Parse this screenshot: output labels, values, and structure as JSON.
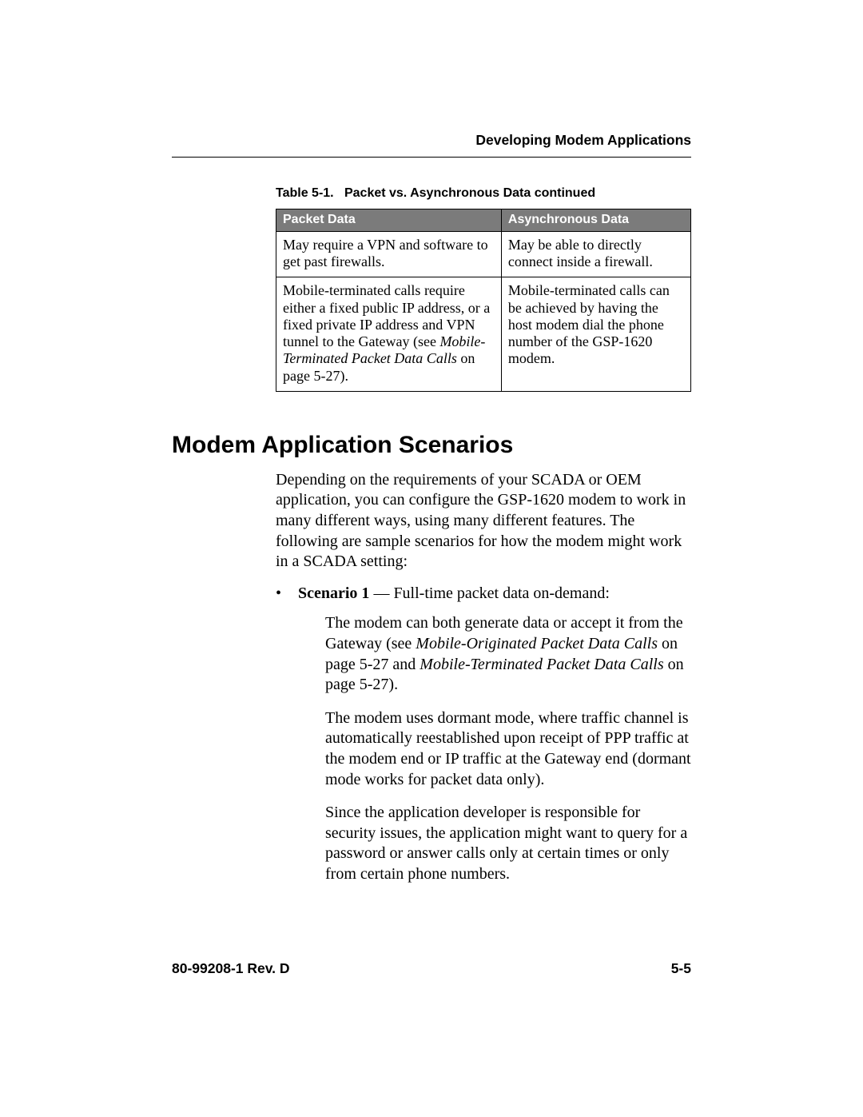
{
  "header": {
    "running_head": "Developing Modem Applications"
  },
  "table": {
    "caption_prefix": "Table 5-1.",
    "caption_title": "Packet vs. Asynchronous Data  continued",
    "columns": [
      "Packet Data",
      "Asynchronous Data"
    ],
    "header_bg": "#7b7b7b",
    "header_fg": "#ffffff",
    "rows": [
      {
        "left": "May require a VPN and software to get past firewalls.",
        "right": "May be able to directly connect inside a firewall."
      },
      {
        "left_plain1": "Mobile-terminated calls require either a fixed public IP address, or a fixed private IP address and VPN tunnel to the Gateway (see ",
        "left_italic": "Mobile-Terminated Packet Data Calls",
        "left_plain2": " on page 5-27).",
        "right": "Mobile-terminated calls can be achieved by having the host modem dial the phone number of the GSP-1620 modem."
      }
    ]
  },
  "section": {
    "title": "Modem Application Scenarios",
    "intro": "Depending on the requirements of your SCADA or OEM application, you can configure the GSP-1620 modem to work in many different ways, using many different features. The following are sample scenarios for how the modem might work in a SCADA setting:",
    "bullet": {
      "label_bold": "Scenario 1",
      "label_rest": " — Full-time packet data on-demand:"
    },
    "para1": {
      "a": "The modem can both generate data or accept it from the Gateway (see ",
      "i1": "Mobile-Originated Packet Data Calls",
      "b": " on page 5-27 and ",
      "i2": "Mobile-Terminated Packet Data Calls",
      "c": " on page 5-27)."
    },
    "para2": "The modem uses dormant mode, where traffic channel is automatically reestablished upon receipt of PPP traffic at the modem end or IP traffic at the Gateway end (dormant mode works for packet data only).",
    "para3": "Since the application developer is responsible for security issues, the application might want to query for a password or answer calls only at certain times or only from certain phone numbers."
  },
  "footer": {
    "left": "80-99208-1 Rev. D",
    "right": "5-5"
  }
}
